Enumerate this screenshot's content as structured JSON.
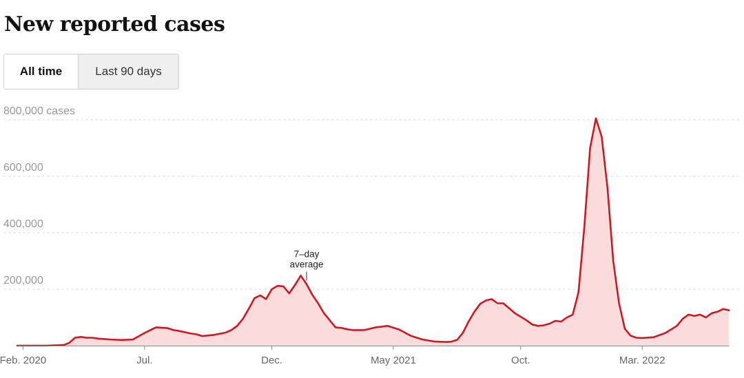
{
  "title": "New reported cases",
  "toggle": {
    "all_time": "All time",
    "last_90": "Last 90 days",
    "selected": "All time"
  },
  "colors": {
    "line": "#d0161f",
    "area": "#fbdcdc",
    "grid": "#dddddd"
  },
  "chart_data": {
    "type": "area",
    "title": "New reported cases",
    "series_name": "7-day average",
    "annotation": {
      "line1": "7–day",
      "line2": "average",
      "at_week": 50
    },
    "ylim": [
      0,
      800000
    ],
    "y_ticks": [
      {
        "value": 200000,
        "label": "200,000"
      },
      {
        "value": 400000,
        "label": "400,000"
      },
      {
        "value": 600000,
        "label": "600,000"
      },
      {
        "value": 800000,
        "label": "800,000 cases"
      }
    ],
    "x_ticks": [
      {
        "week": 1,
        "label": "Feb. 2020"
      },
      {
        "week": 22,
        "label": "Jul."
      },
      {
        "week": 44,
        "label": "Dec."
      },
      {
        "week": 65,
        "label": "May 2021"
      },
      {
        "week": 87,
        "label": "Oct."
      },
      {
        "week": 108,
        "label": "Mar. 2022"
      }
    ],
    "x_unit": "weeks since Jan. 22, 2020",
    "x": [
      0,
      5,
      8,
      9,
      10,
      11,
      12,
      13,
      14,
      16,
      18,
      20,
      22,
      24,
      26,
      27,
      28,
      30,
      31,
      32,
      34,
      36,
      37,
      38,
      39,
      40,
      41,
      42,
      43,
      44,
      45,
      46,
      47,
      48,
      49,
      50,
      51,
      52,
      53,
      54,
      55,
      56,
      57,
      58,
      60,
      62,
      64,
      66,
      68,
      70,
      72,
      74,
      75,
      76,
      77,
      78,
      79,
      80,
      81,
      82,
      83,
      84,
      86,
      88,
      89,
      90,
      91,
      92,
      93,
      94,
      95,
      96,
      97,
      98,
      99,
      100,
      101,
      102,
      103,
      104,
      105,
      106,
      107,
      108,
      110,
      112,
      114,
      115,
      116,
      117,
      118,
      119,
      120,
      121,
      122,
      123
    ],
    "values": [
      0,
      0,
      2000,
      10000,
      28000,
      31000,
      28000,
      28000,
      25000,
      22000,
      20000,
      22000,
      45000,
      65000,
      62000,
      55000,
      52000,
      43000,
      40000,
      34000,
      38000,
      46000,
      55000,
      70000,
      95000,
      130000,
      168000,
      178000,
      165000,
      200000,
      212000,
      210000,
      185000,
      215000,
      248000,
      218000,
      180000,
      150000,
      115000,
      90000,
      65000,
      63000,
      58000,
      55000,
      55000,
      65000,
      70000,
      57000,
      35000,
      22000,
      15000,
      13000,
      14000,
      20000,
      45000,
      85000,
      120000,
      148000,
      160000,
      165000,
      150000,
      150000,
      115000,
      90000,
      75000,
      70000,
      72000,
      78000,
      88000,
      85000,
      100000,
      110000,
      190000,
      420000,
      700000,
      805000,
      740000,
      560000,
      300000,
      150000,
      60000,
      35000,
      28000,
      27000,
      30000,
      45000,
      70000,
      95000,
      110000,
      105000,
      110000,
      100000,
      115000,
      120000,
      130000,
      125000
    ]
  }
}
